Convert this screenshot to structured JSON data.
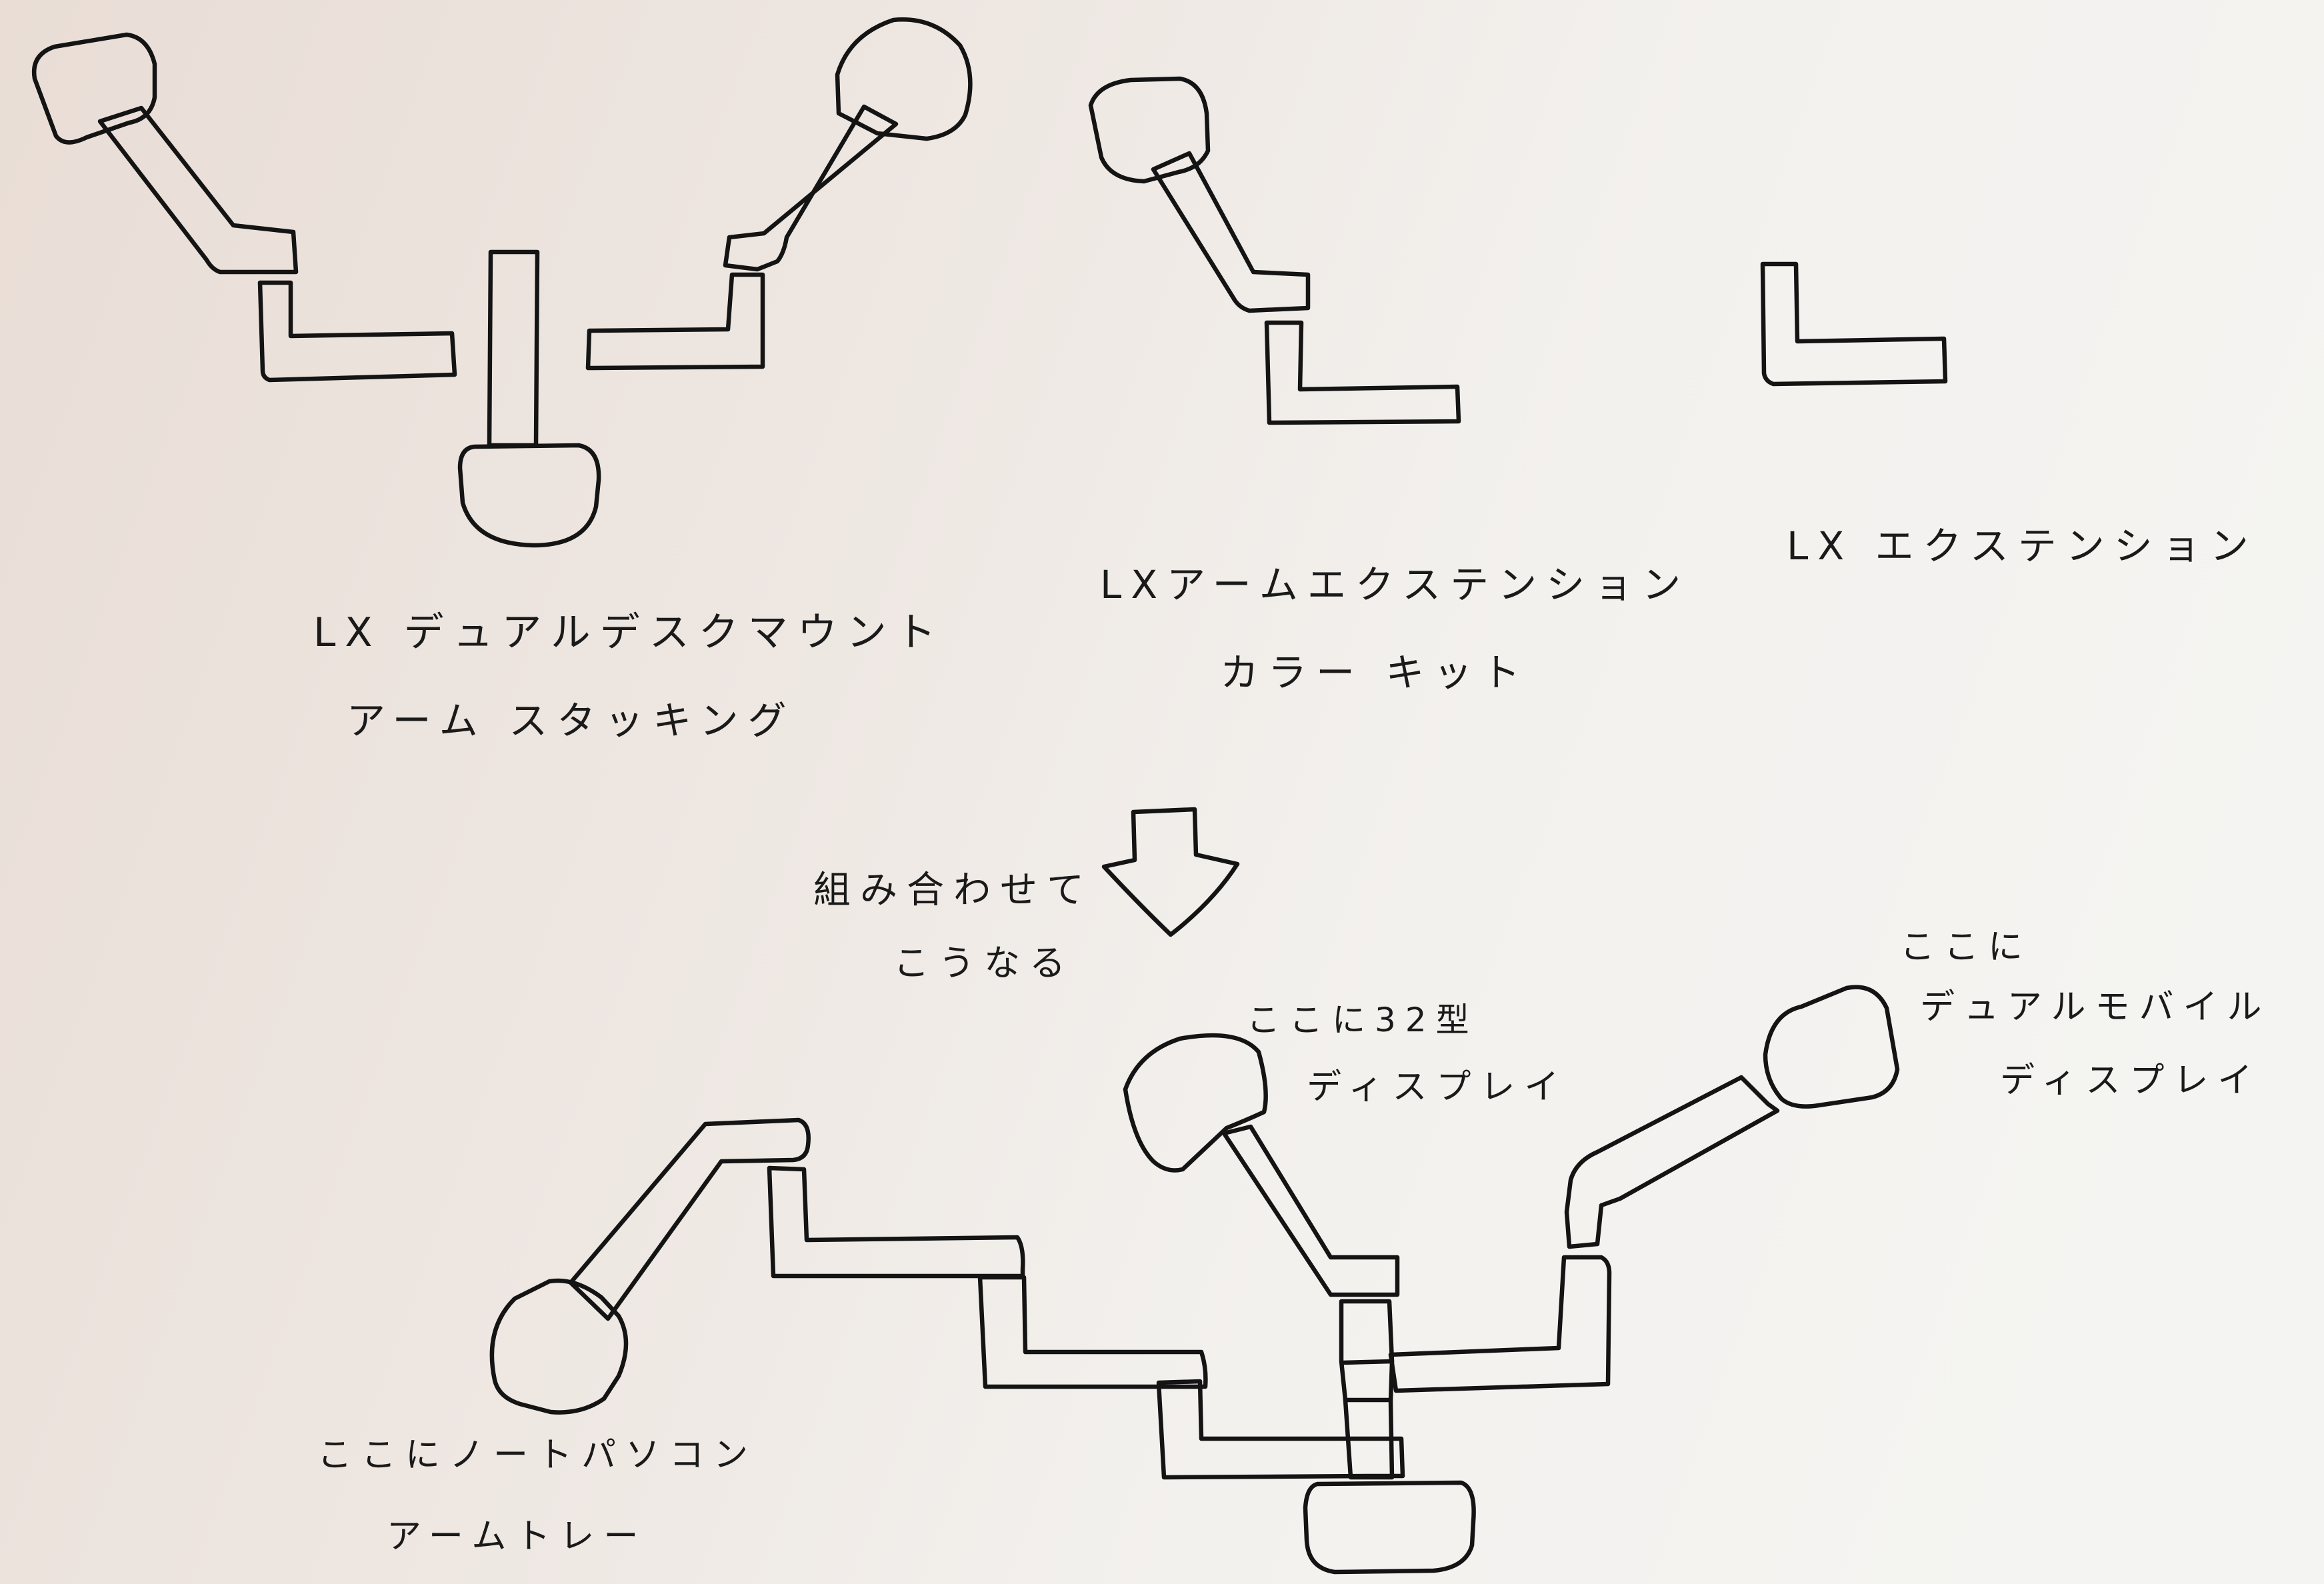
{
  "labels": {
    "dual_desk_mount_line1": "LX デュアルデスクマウント",
    "dual_desk_mount_line2": "アーム スタッキング",
    "arm_extension_line1": "LXアームエクステンション",
    "arm_extension_line2": "カラー キット",
    "extension": "LX エクステンション",
    "combine_line1": "組み合わせて",
    "combine_line2": "こうなる",
    "display32_line1": "ここに32型",
    "display32_line2": "ディスプレイ",
    "dual_mobile_line1": "ここに",
    "dual_mobile_line2": "デュアルモバイル",
    "dual_mobile_line3": "ディスプレイ",
    "laptop_tray_line1": "ここにノートパソコン",
    "laptop_tray_line2": "アームトレー"
  },
  "colors": {
    "ink": "#141414",
    "paper_warm": "#e9ddd6",
    "paper_cool": "#f4f5f3"
  },
  "icons": {
    "arrow": "down-arrow-icon"
  }
}
